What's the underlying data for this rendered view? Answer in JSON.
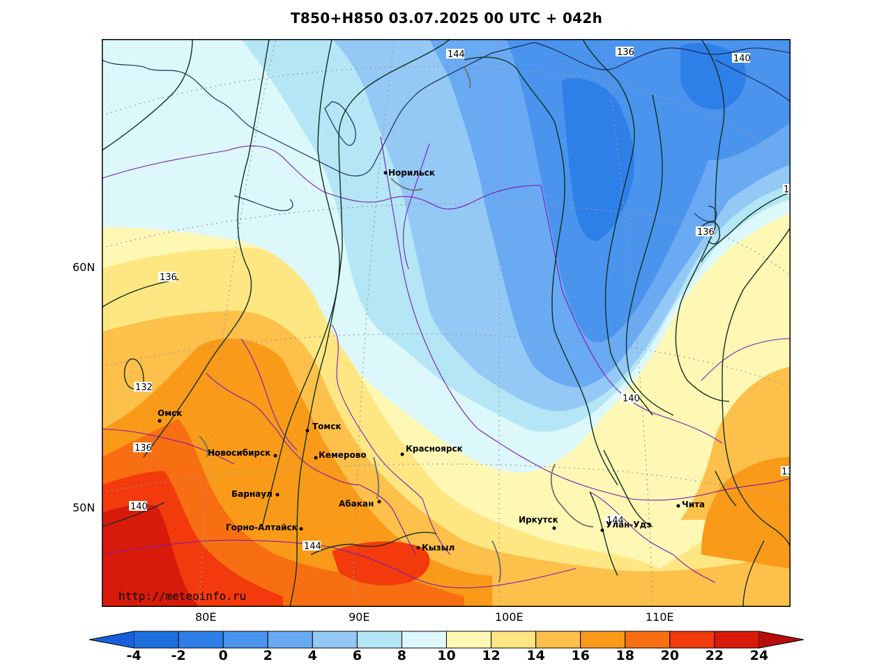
{
  "title": "T850+H850 03.07.2025 00 UTC + 042h",
  "watermark": "http://meteoinfo.ru",
  "lat_labels": [
    "60N",
    "50N"
  ],
  "lon_labels": [
    "80E",
    "90E",
    "100E",
    "110E"
  ],
  "colorbar": {
    "ticks": [
      "-4",
      "-2",
      "0",
      "2",
      "4",
      "6",
      "8",
      "10",
      "12",
      "14",
      "16",
      "18",
      "20",
      "22",
      "24"
    ],
    "colors": [
      "#1e6fe0",
      "#2f7fe8",
      "#4a94ee",
      "#6aaaf2",
      "#94c8f5",
      "#b4e6f5",
      "#dcf8fb",
      "#fff8b4",
      "#fee783",
      "#fdc04a",
      "#f99a18",
      "#f86e12",
      "#f23a0c",
      "#d81a0a"
    ],
    "under_color": "#1a5fd8",
    "over_color": "#b80d0d"
  },
  "cities": [
    {
      "name": "Норильск"
    },
    {
      "name": "Омск"
    },
    {
      "name": "Томск"
    },
    {
      "name": "Новосибирск"
    },
    {
      "name": "Кемерово"
    },
    {
      "name": "Красноярск"
    },
    {
      "name": "Барнаул"
    },
    {
      "name": "Абакан"
    },
    {
      "name": "Горно-Алтайск"
    },
    {
      "name": "Кызыл"
    },
    {
      "name": "Иркутск"
    },
    {
      "name": "Улан-Удэ"
    },
    {
      "name": "Чита"
    }
  ],
  "contour_labels": [
    "144",
    "136",
    "140",
    "1",
    "136",
    "136",
    "132",
    "136",
    "140",
    "144",
    "140",
    "144",
    "13"
  ]
}
